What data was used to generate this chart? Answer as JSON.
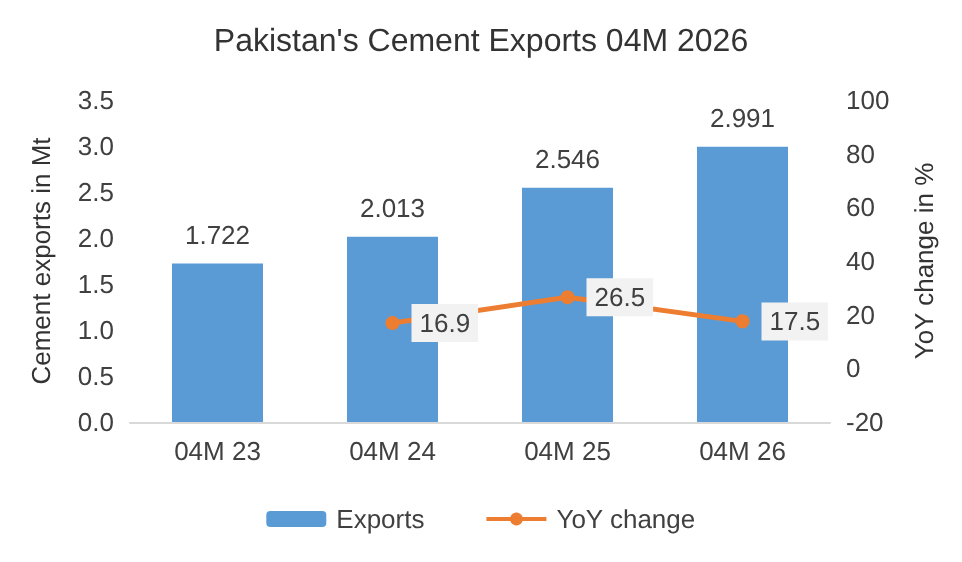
{
  "chart_data": {
    "type": "bar",
    "title": "Pakistan's Cement Exports 04M 2026",
    "ylabel": "Cement exports in Mt",
    "y2label": "YoY change in %",
    "categories": [
      "04M 23",
      "04M 24",
      "04M 25",
      "04M 26"
    ],
    "series": [
      {
        "name": "Exports",
        "color": "#5b9bd5",
        "values": [
          1.722,
          2.013,
          2.546,
          2.991
        ]
      },
      {
        "name": "YoY change",
        "type": "line",
        "axis": "y2",
        "color": "#ed7d31",
        "marker": "circle",
        "values": [
          null,
          16.9,
          26.5,
          17.5
        ]
      }
    ],
    "ylim": [
      0,
      3.5
    ],
    "yticks": [
      {
        "value": 0,
        "label": "0.0"
      },
      {
        "value": 0.5,
        "label": "0.5"
      },
      {
        "value": 1,
        "label": "1.0"
      },
      {
        "value": 1.5,
        "label": "1.5"
      },
      {
        "value": 2,
        "label": "2.0"
      },
      {
        "value": 2.5,
        "label": "2.5"
      },
      {
        "value": 3,
        "label": "3.0"
      },
      {
        "value": 3.5,
        "label": "3.5"
      }
    ],
    "y2lim": [
      -20,
      100
    ],
    "y2ticks": [
      -20,
      0,
      20,
      40,
      60,
      80,
      100
    ],
    "data_labels": true,
    "legend": "bottom",
    "grid": false
  }
}
